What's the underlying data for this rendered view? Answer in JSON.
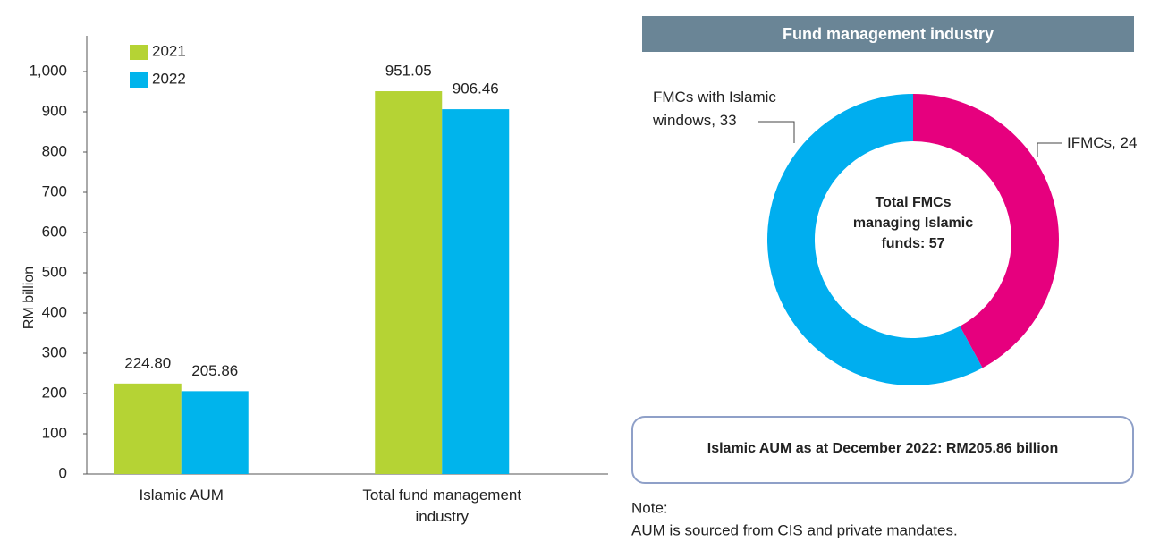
{
  "chart_data": [
    {
      "type": "bar",
      "y_label": "RM billion",
      "categories": [
        "Islamic AUM",
        "Total fund management industry"
      ],
      "series": [
        {
          "name": "2021",
          "color": "#b5d334",
          "values": [
            224.8,
            951.05
          ],
          "value_labels": [
            "224.80",
            "951.05"
          ]
        },
        {
          "name": "2022",
          "color": "#00b4ec",
          "values": [
            205.86,
            906.46
          ],
          "value_labels": [
            "205.86",
            "906.46"
          ]
        }
      ],
      "ylim": [
        0,
        1000
      ],
      "yticks": [
        0,
        100,
        200,
        300,
        400,
        500,
        600,
        700,
        800,
        900,
        {
          "value": 1000,
          "label": "1,000"
        }
      ],
      "legend": "top-left",
      "grid": false
    },
    {
      "type": "donut",
      "title": "Fund management industry",
      "categories": [
        "IFMCs",
        "FMCs with Islamic windows"
      ],
      "values": [
        24,
        33
      ],
      "value_labels": [
        "IFMCs, 24",
        "FMCs with Islamic windows, 33"
      ],
      "colors": [
        "#e6007e",
        "#00aeef"
      ],
      "annotation": "Total FMCs managing Islamic funds: 57"
    }
  ],
  "callout": "Islamic AUM as at December 2022: RM205.86 billion",
  "note": {
    "title": "Note:",
    "text": "AUM is sourced from CIS and private mandates."
  }
}
